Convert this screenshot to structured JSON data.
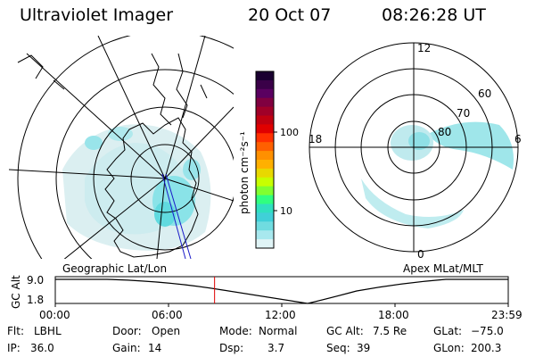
{
  "header": {
    "instrument": "Ultraviolet Imager",
    "date": "20 Oct 07",
    "time": "08:26:28 UT"
  },
  "colorbar": {
    "unit_label": "photon cm⁻²s⁻¹",
    "ticks": [
      "100",
      "10"
    ],
    "colors": [
      "#1a0030",
      "#3a0048",
      "#5a0060",
      "#800040",
      "#a00028",
      "#c00010",
      "#e00000",
      "#ff3000",
      "#ff6000",
      "#ff9000",
      "#ffb000",
      "#e8d800",
      "#c8ff00",
      "#80ff30",
      "#30ff80",
      "#30e0c0",
      "#40d0d8",
      "#70dce0",
      "#a8e8ee",
      "#e0f4f6"
    ]
  },
  "left_map": {
    "label": "Geographic Lat/Lon"
  },
  "right_map": {
    "label": "Apex MLat/MLT",
    "mlt_labels": {
      "top": "12",
      "left": "18",
      "right": "6",
      "bottom": "0"
    },
    "mlat_labels": [
      "60",
      "70",
      "80"
    ]
  },
  "altitude_plot": {
    "ylabel": "GC Alt",
    "y_ticks": [
      "9.0",
      "1.8"
    ],
    "x_ticks": [
      "00:00",
      "06:00",
      "12:00",
      "18:00",
      "23:59"
    ],
    "current_time_marker_hours": 8.44
  },
  "status": {
    "flt_label": "Flt:",
    "flt_value": "LBHL",
    "ip_label": "IP:",
    "ip_value": "36.0",
    "door_label": "Door:",
    "door_value": "Open",
    "gain_label": "Gain:",
    "gain_value": "14",
    "mode_label": "Mode:",
    "mode_value": "Normal",
    "dsp_label": "Dsp:",
    "dsp_value": "3.7",
    "gcalt_label": "GC Alt:",
    "gcalt_value": "7.5 Re",
    "seq_label": "Seq:",
    "seq_value": "39",
    "glat_label": "GLat:",
    "glat_value": "−75.0",
    "glon_label": "GLon:",
    "glon_value": "200.3"
  }
}
